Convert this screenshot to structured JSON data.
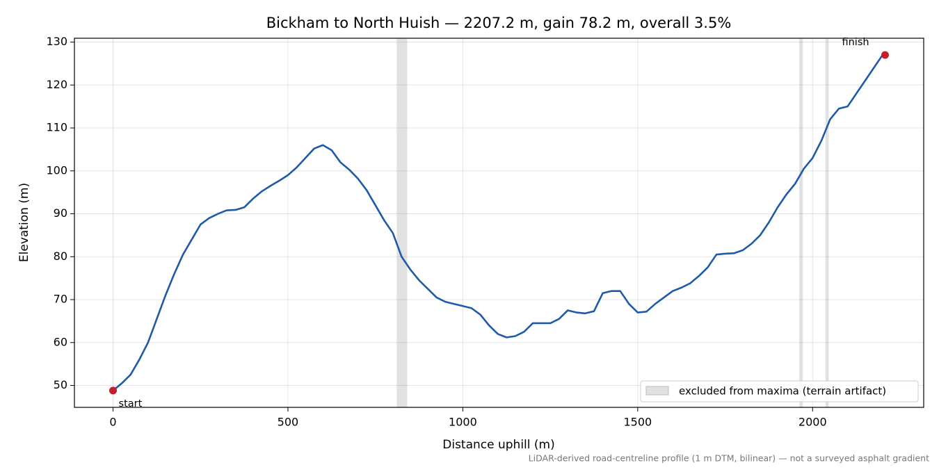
{
  "chart_data": {
    "type": "line",
    "title": "Bickham to North Huish — 2207.2 m, gain 78.2 m, overall 3.5%",
    "x_label": "Distance uphill (m)",
    "y_label": "Elevation (m)",
    "footnote": "LiDAR-derived road-centreline profile (1 m DTM, bilinear) — not a surveyed asphalt gradient",
    "xlim": [
      -110.4,
      2317.6
    ],
    "ylim": [
      44.9,
      130.9
    ],
    "xticks": [
      0,
      500,
      1000,
      1500,
      2000
    ],
    "yticks": [
      50,
      60,
      70,
      80,
      90,
      100,
      110,
      120,
      130
    ],
    "grid": true,
    "legend_position": "lower right",
    "excluded_label": "excluded from maxima (terrain artifact)",
    "excluded_color": "#c8c8c8",
    "excluded_spans": [
      [
        811,
        841
      ],
      [
        1962,
        1972
      ],
      [
        2037,
        2046
      ]
    ],
    "x": [
      0,
      25,
      50,
      75,
      100,
      125,
      150,
      175,
      200,
      225,
      250,
      275,
      300,
      325,
      350,
      375,
      400,
      425,
      450,
      475,
      500,
      525,
      550,
      575,
      600,
      625,
      650,
      675,
      700,
      725,
      750,
      775,
      800,
      825,
      850,
      875,
      900,
      925,
      950,
      975,
      1000,
      1025,
      1050,
      1075,
      1100,
      1125,
      1150,
      1175,
      1200,
      1225,
      1250,
      1275,
      1300,
      1325,
      1350,
      1375,
      1400,
      1425,
      1450,
      1475,
      1500,
      1525,
      1550,
      1575,
      1600,
      1625,
      1650,
      1675,
      1700,
      1725,
      1750,
      1775,
      1800,
      1825,
      1850,
      1875,
      1900,
      1925,
      1950,
      1975,
      2000,
      2025,
      2050,
      2075,
      2100,
      2125,
      2150,
      2175,
      2200,
      2207.2
    ],
    "series": [
      {
        "name": "elevation",
        "color": "#1f5aa8",
        "values": [
          48.8,
          50.5,
          52.5,
          56,
          60,
          65.5,
          71,
          76,
          80.5,
          84,
          87.5,
          89,
          90,
          90.8,
          90.9,
          91.5,
          93.5,
          95.2,
          96.5,
          97.7,
          99,
          100.8,
          103,
          105.2,
          106,
          104.8,
          102,
          100.3,
          98.2,
          95.5,
          92,
          88.5,
          85.5,
          80,
          77,
          74.5,
          72.5,
          70.5,
          69.5,
          69,
          68.5,
          68,
          66.5,
          64,
          62,
          61.2,
          61.5,
          62.5,
          64.5,
          64.5,
          64.5,
          65.5,
          67.5,
          67,
          66.8,
          67.3,
          71.5,
          72,
          72,
          69,
          67,
          67.2,
          69,
          70.5,
          72,
          72.8,
          73.8,
          75.5,
          77.5,
          80.5,
          80.7,
          80.8,
          81.5,
          83,
          85,
          88,
          91.5,
          94.5,
          97,
          100.5,
          103,
          107,
          112,
          114.5,
          115,
          118,
          121,
          124,
          127,
          127
        ]
      }
    ],
    "markers": [
      {
        "label": "start",
        "x": 0,
        "y": 48.8,
        "color": "#c41e2a"
      },
      {
        "label": "finish",
        "x": 2207.2,
        "y": 127,
        "color": "#c41e2a"
      }
    ]
  }
}
